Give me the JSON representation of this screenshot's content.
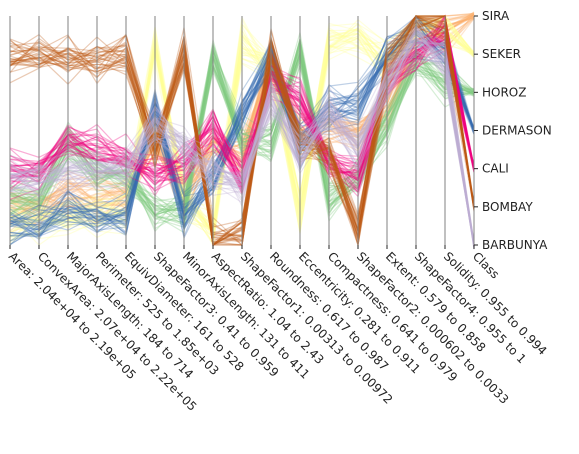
{
  "chart_data": {
    "type": "parallel_coordinates",
    "title": "",
    "grid": false,
    "axes": [
      {
        "name": "Area",
        "label": "Area: 2.04e+04 to 2.19e+05",
        "min": 20400,
        "max": 219000
      },
      {
        "name": "ConvexArea",
        "label": "ConvexArea: 2.07e+04 to 2.22e+05",
        "min": 20700,
        "max": 222000
      },
      {
        "name": "MajorAxisLength",
        "label": "MajorAxisLength: 184 to 714",
        "min": 184,
        "max": 714
      },
      {
        "name": "Perimeter",
        "label": "Perimeter: 525 to 1.85e+03",
        "min": 525,
        "max": 1850
      },
      {
        "name": "EquivDiameter",
        "label": "EquivDiameter: 161 to 528",
        "min": 161,
        "max": 528
      },
      {
        "name": "ShapeFactor3",
        "label": "ShapeFactor3: 0.41 to 0.959",
        "min": 0.41,
        "max": 0.959
      },
      {
        "name": "MinorAxisLength",
        "label": "MinorAxisLength: 131 to 411",
        "min": 131,
        "max": 411
      },
      {
        "name": "AspectRatio",
        "label": "AspectRatio: 1.04 to 2.43",
        "min": 1.04,
        "max": 2.43
      },
      {
        "name": "ShapeFactor1",
        "label": "ShapeFactor1: 0.00313 to 0.00972",
        "min": 0.00313,
        "max": 0.00972
      },
      {
        "name": "Roundness",
        "label": "Roundness: 0.617 to 0.987",
        "min": 0.617,
        "max": 0.987
      },
      {
        "name": "Eccentricity",
        "label": "Eccentricity: 0.281 to 0.911",
        "min": 0.281,
        "max": 0.911
      },
      {
        "name": "Compactness",
        "label": "Compactness: 0.641 to 0.979",
        "min": 0.641,
        "max": 0.979
      },
      {
        "name": "ShapeFactor2",
        "label": "ShapeFactor2: 0.000602 to 0.0033",
        "min": 0.000602,
        "max": 0.0033
      },
      {
        "name": "Extent",
        "label": "Extent: 0.579 to 0.858",
        "min": 0.579,
        "max": 0.858
      },
      {
        "name": "ShapeFactor4",
        "label": "ShapeFactor4: 0.955 to 1",
        "min": 0.955,
        "max": 1
      },
      {
        "name": "Solidity",
        "label": "Solidity: 0.955 to 0.994",
        "min": 0.955,
        "max": 0.994
      },
      {
        "name": "Class",
        "label": "Class"
      }
    ],
    "class_axis": {
      "categories": [
        "SIRA",
        "SEKER",
        "HOROZ",
        "DERMASON",
        "CALI",
        "BOMBAY",
        "BARBUNYA"
      ]
    },
    "series": [
      {
        "name": "SIRA",
        "color": "#fdae6b",
        "center": [
          0.16,
          0.16,
          0.24,
          0.21,
          0.22,
          0.47,
          0.21,
          0.42,
          0.39,
          0.8,
          0.49,
          0.52,
          0.5,
          0.6,
          0.88,
          0.93,
          1.0
        ]
      },
      {
        "name": "SEKER",
        "color": "#ffff99",
        "center": [
          0.1,
          0.1,
          0.13,
          0.13,
          0.14,
          0.88,
          0.19,
          0.08,
          0.88,
          0.78,
          0.14,
          0.88,
          0.91,
          0.8,
          0.96,
          0.95,
          0.84
        ]
      },
      {
        "name": "HOROZ",
        "color": "#7fc97f",
        "center": [
          0.2,
          0.2,
          0.45,
          0.32,
          0.29,
          0.16,
          0.15,
          0.83,
          0.45,
          0.46,
          0.84,
          0.2,
          0.3,
          0.52,
          0.8,
          0.7,
          0.67
        ]
      },
      {
        "name": "DERMASON",
        "color": "#386cb0",
        "center": [
          0.09,
          0.09,
          0.15,
          0.12,
          0.12,
          0.6,
          0.13,
          0.3,
          0.58,
          0.82,
          0.42,
          0.6,
          0.62,
          0.83,
          0.93,
          0.85,
          0.5
        ]
      },
      {
        "name": "CALI",
        "color": "#f0027f",
        "center": [
          0.32,
          0.32,
          0.46,
          0.41,
          0.38,
          0.32,
          0.36,
          0.52,
          0.29,
          0.73,
          0.63,
          0.36,
          0.3,
          0.72,
          0.82,
          0.93,
          0.33
        ]
      },
      {
        "name": "BOMBAY",
        "color": "#bf5b17",
        "center": [
          0.82,
          0.82,
          0.82,
          0.79,
          0.84,
          0.42,
          0.85,
          0.02,
          0.04,
          0.85,
          0.44,
          0.4,
          0.05,
          0.78,
          0.97,
          0.97,
          0.17
        ]
      },
      {
        "name": "BARBUNYA",
        "color": "#beaed4",
        "center": [
          0.29,
          0.29,
          0.32,
          0.32,
          0.34,
          0.55,
          0.42,
          0.31,
          0.27,
          0.65,
          0.4,
          0.58,
          0.42,
          0.7,
          0.9,
          0.8,
          0.0
        ]
      }
    ]
  }
}
